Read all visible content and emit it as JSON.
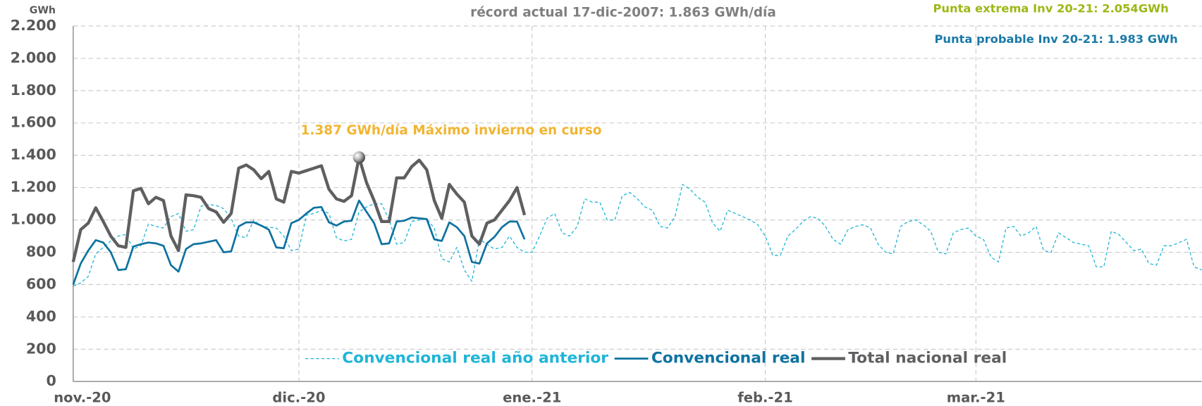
{
  "chart_data": {
    "type": "line",
    "title": "récord actual 17-dic-2007: 1.863 GWh/día",
    "y_unit": "GWh",
    "annotations": [
      "Punta extrema Inv 20-21: 2.054GWh",
      "Punta probable Inv 20-21: 1.983 GWh",
      "1.387 GWh/día Máximo invierno en curso"
    ],
    "annotation_colors": [
      "#9ab814",
      "#1a7aa8",
      "#f2b531"
    ],
    "highlight": {
      "series": 2,
      "index": 38
    },
    "categories": [
      "nov.-20",
      null,
      null,
      null,
      null,
      null,
      null,
      null,
      null,
      null,
      null,
      null,
      null,
      null,
      null,
      null,
      null,
      null,
      null,
      null,
      null,
      null,
      null,
      null,
      null,
      null,
      null,
      null,
      null,
      null,
      "dic.-20",
      null,
      null,
      null,
      null,
      null,
      null,
      null,
      null,
      null,
      null,
      null,
      null,
      null,
      null,
      null,
      null,
      null,
      null,
      null,
      null,
      null,
      null,
      null,
      null,
      null,
      null,
      null,
      null,
      null,
      null,
      "ene.-21",
      null,
      null,
      null,
      null,
      null,
      null,
      null,
      null,
      null,
      null,
      null,
      null,
      null,
      null,
      null,
      null,
      null,
      null,
      null,
      null,
      null,
      null,
      null,
      null,
      null,
      null,
      null,
      null,
      null,
      null,
      "feb.-21",
      null,
      null,
      null,
      null,
      null,
      null,
      null,
      null,
      null,
      null,
      null,
      null,
      null,
      null,
      null,
      null,
      null,
      null,
      null,
      null,
      null,
      null,
      null,
      null,
      null,
      null,
      null,
      "mar.-21",
      null,
      null,
      null,
      null,
      null,
      null,
      null,
      null,
      null,
      null,
      null,
      null,
      null,
      null,
      null,
      null,
      null,
      null,
      null,
      null,
      null,
      null,
      null,
      null,
      null,
      null,
      null,
      null,
      null,
      null
    ],
    "series": [
      {
        "name": "Convencional real año anterior",
        "color": "#1fb5d8",
        "dashed": true,
        "values": [
          590,
          610,
          650,
          790,
          830,
          870,
          900,
          910,
          820,
          840,
          975,
          960,
          950,
          1020,
          1040,
          930,
          940,
          1085,
          1095,
          1090,
          1070,
          1010,
          900,
          890,
          1000,
          960,
          955,
          950,
          900,
          810,
          820,
          1030,
          1040,
          1060,
          1040,
          890,
          870,
          880,
          1050,
          1080,
          1100,
          1100,
          1000,
          850,
          860,
          990,
          1000,
          1005,
          950,
          760,
          740,
          830,
          690,
          620,
          880,
          850,
          820,
          830,
          900,
          830,
          800,
          800,
          900,
          1010,
          1040,
          920,
          900,
          960,
          1130,
          1110,
          1110,
          1000,
          1000,
          1150,
          1170,
          1130,
          1080,
          1060,
          960,
          950,
          1020,
          1220,
          1190,
          1140,
          1110,
          980,
          930,
          1060,
          1040,
          1020,
          1000,
          970,
          900,
          780,
          780,
          900,
          940,
          990,
          1020,
          1010,
          960,
          880,
          850,
          940,
          960,
          970,
          950,
          850,
          800,
          790,
          960,
          990,
          1000,
          970,
          930,
          800,
          790,
          920,
          940,
          950,
          900,
          880,
          770,
          740,
          950,
          960,
          900,
          920,
          960,
          810,
          800,
          920,
          890,
          860,
          850,
          840,
          710,
          710,
          930,
          910,
          860,
          810,
          820,
          730,
          720,
          840,
          840,
          860,
          880,
          710,
          690
        ]
      },
      {
        "name": "Convencional real",
        "color": "#0e72a0",
        "dashed": false,
        "values": [
          600,
          730,
          810,
          875,
          860,
          800,
          690,
          695,
          835,
          850,
          860,
          855,
          840,
          720,
          680,
          820,
          850,
          855,
          865,
          875,
          800,
          805,
          960,
          985,
          985,
          965,
          940,
          830,
          825,
          980,
          1000,
          1040,
          1075,
          1080,
          985,
          965,
          990,
          995,
          1120,
          1050,
          980,
          850,
          855,
          990,
          995,
          1015,
          1010,
          1005,
          880,
          870,
          985,
          955,
          900,
          740,
          730,
          855,
          895,
          955,
          990,
          990,
          880,
          null,
          null,
          null,
          null,
          null,
          null,
          null,
          null,
          null,
          null,
          null,
          null,
          null,
          null,
          null,
          null,
          null,
          null,
          null,
          null,
          null,
          null,
          null,
          null,
          null,
          null,
          null,
          null,
          null,
          null,
          null,
          null,
          null,
          null,
          null,
          null,
          null,
          null,
          null,
          null,
          null,
          null,
          null,
          null,
          null,
          null,
          null,
          null,
          null,
          null,
          null,
          null,
          null,
          null,
          null,
          null,
          null,
          null,
          null,
          null,
          null,
          null,
          null,
          null,
          null,
          null,
          null,
          null,
          null,
          null,
          null,
          null,
          null,
          null,
          null,
          null,
          null,
          null,
          null,
          null,
          null,
          null,
          null,
          null,
          null,
          null,
          null,
          null,
          null,
          null
        ]
      },
      {
        "name": "Total nacional real",
        "color": "#5f5f62",
        "dashed": false,
        "values": [
          740,
          940,
          980,
          1075,
          990,
          900,
          840,
          830,
          1180,
          1195,
          1100,
          1140,
          1120,
          900,
          810,
          1155,
          1150,
          1140,
          1070,
          1050,
          985,
          1040,
          1320,
          1340,
          1310,
          1255,
          1300,
          1130,
          1110,
          1300,
          1290,
          1305,
          1320,
          1335,
          1190,
          1130,
          1115,
          1150,
          1387,
          1230,
          1120,
          990,
          990,
          1260,
          1260,
          1330,
          1370,
          1310,
          1120,
          1010,
          1220,
          1160,
          1110,
          900,
          850,
          980,
          1000,
          1060,
          1120,
          1200,
          1030,
          null,
          null,
          null,
          null,
          null,
          null,
          null,
          null,
          null,
          null,
          null,
          null,
          null,
          null,
          null,
          null,
          null,
          null,
          null,
          null,
          null,
          null,
          null,
          null,
          null,
          null,
          null,
          null,
          null,
          null,
          null,
          null,
          null,
          null,
          null,
          null,
          null,
          null,
          null,
          null,
          null,
          null,
          null,
          null,
          null,
          null,
          null,
          null,
          null,
          null,
          null,
          null,
          null,
          null,
          null,
          null,
          null,
          null,
          null,
          null,
          null,
          null,
          null,
          null,
          null,
          null,
          null,
          null,
          null,
          null,
          null,
          null,
          null,
          null,
          null,
          null,
          null,
          null,
          null,
          null,
          null,
          null,
          null,
          null,
          null,
          null,
          null,
          null,
          null,
          null
        ]
      }
    ],
    "ylim": [
      0,
      2200
    ],
    "yticks": [
      0,
      200,
      400,
      600,
      800,
      {
        "value": 1000,
        "label": "1.000"
      },
      {
        "value": 1200,
        "label": "1.200"
      },
      {
        "value": 1400,
        "label": "1.400"
      },
      {
        "value": 1600,
        "label": "1.600"
      },
      {
        "value": 1800,
        "label": "1.800"
      },
      {
        "value": 2000,
        "label": "2.000"
      },
      {
        "value": 2200,
        "label": "2.200"
      }
    ],
    "grid": true
  }
}
